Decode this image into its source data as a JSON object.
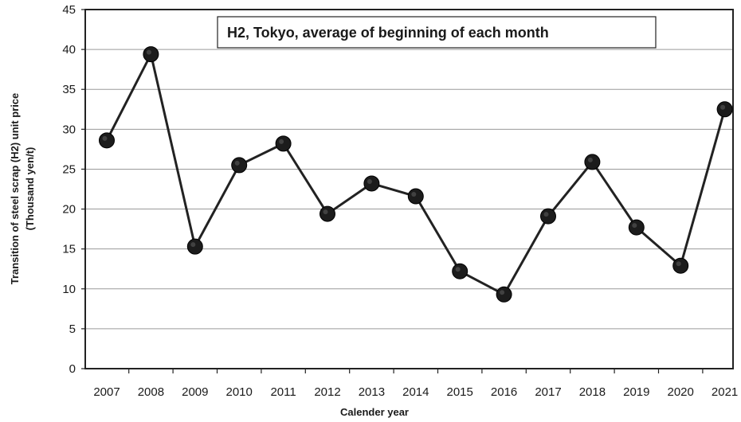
{
  "chart_data": {
    "type": "line",
    "title": "H2, Tokyo, average of beginning of each month",
    "xlabel": "Calender year",
    "ylabel_line1": "Transition of steel scrap (H2) unit price",
    "ylabel_line2": "(Thousand yen/t)",
    "ylim": [
      0,
      45
    ],
    "yticks": [
      0,
      5,
      10,
      15,
      20,
      25,
      30,
      35,
      40,
      45
    ],
    "grid": true,
    "categories": [
      "2007",
      "2008",
      "2009",
      "2010",
      "2011",
      "2012",
      "2013",
      "2014",
      "2015",
      "2016",
      "2017",
      "2018",
      "2019",
      "2020",
      "2021"
    ],
    "series": [
      {
        "name": "H2, Tokyo",
        "values": [
          28.6,
          39.4,
          15.3,
          25.5,
          28.2,
          19.4,
          23.2,
          21.6,
          12.2,
          9.3,
          19.1,
          25.9,
          17.7,
          12.9,
          32.5
        ]
      }
    ],
    "colors": {
      "line": "#222222",
      "marker": "#1c1c1c",
      "grid": "#9a9a9a",
      "axis": "#222222"
    }
  }
}
